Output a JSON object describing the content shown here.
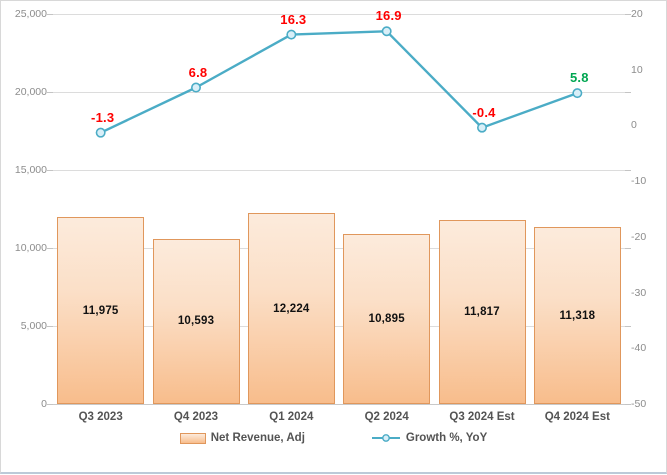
{
  "chart_data": {
    "type": "combo-bar-line",
    "title": "",
    "categories": [
      "Q3 2023",
      "Q4 2023",
      "Q1 2024",
      "Q2 2024",
      "Q3 2024 Est",
      "Q4 2024 Est"
    ],
    "series": [
      {
        "name": "Net Revenue, Adj",
        "type": "bar",
        "axis": "left",
        "values": [
          11975,
          10593,
          12224,
          10895,
          11817,
          11318
        ],
        "value_labels": [
          "11,975",
          "10,593",
          "12,224",
          "10,895",
          "11,817",
          "11,318"
        ]
      },
      {
        "name": "Growth %, YoY",
        "type": "line",
        "axis": "right",
        "values": [
          -1.3,
          6.8,
          16.3,
          16.9,
          -0.4,
          5.8
        ],
        "value_labels": [
          "-1.3",
          "6.8",
          "16.3",
          "16.9",
          "-0.4",
          "5.8"
        ],
        "value_label_colors": [
          "#ff0000",
          "#ff0000",
          "#ff0000",
          "#ff0000",
          "#ff0000",
          "#00a651"
        ]
      }
    ],
    "left_axis": {
      "min": 0,
      "max": 25000,
      "step": 5000,
      "tick_labels": [
        "0",
        "5,000",
        "10,000",
        "15,000",
        "20,000",
        "25,000"
      ]
    },
    "right_axis": {
      "min": -50,
      "max": 20,
      "step": 10,
      "tick_labels": [
        "-50",
        "-40",
        "-30",
        "-20",
        "-10",
        "0",
        "10",
        "20"
      ]
    },
    "legend": {
      "bar_label": "Net Revenue, Adj",
      "line_label": "Growth %, YoY"
    },
    "layout_hints": {
      "grid": "horizontal",
      "legend_position": "bottom"
    },
    "colors": {
      "bar_fill_top": "#fcebdc",
      "bar_fill_bottom": "#f8bd8c",
      "bar_border": "#e0975c",
      "line": "#4bacc6",
      "marker_fill": "#d9eff8",
      "grid": "#dcdcdc",
      "axis_text": "#8c8c8c",
      "category_text": "#545454",
      "bar_value_text": "#111111",
      "negative_label": "#ff0000",
      "positive_highlight": "#00a651"
    }
  }
}
